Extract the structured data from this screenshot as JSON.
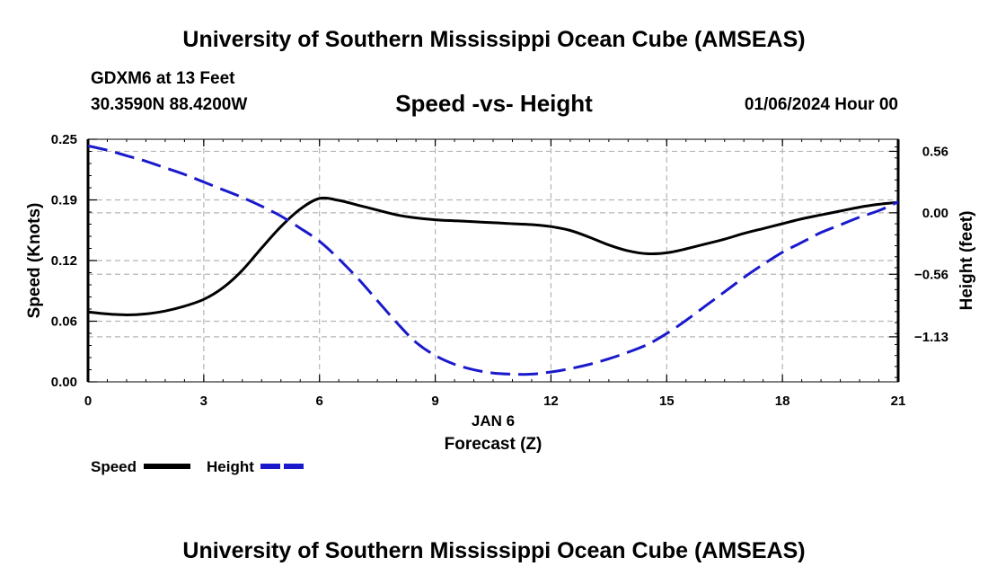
{
  "header": {
    "title": "University of Southern Mississippi Ocean Cube (AMSEAS)",
    "station": "GDXM6 at 13 Feet",
    "coords": "30.3590N  88.4200W",
    "subtitle": "Speed -vs- Height",
    "datetime": "01/06/2024 Hour 00"
  },
  "footer": {
    "title": "University of Southern Mississippi Ocean Cube (AMSEAS)"
  },
  "chart_data": {
    "type": "line",
    "x_label_line1": "JAN 6",
    "x_label_line2": "Forecast (Z)",
    "y_left_label": "Speed (Knots)",
    "y_right_label": "Height (feet)",
    "x_range": [
      0,
      21
    ],
    "x_ticks": [
      0,
      3,
      6,
      9,
      12,
      15,
      18,
      21
    ],
    "x_tick_labels": [
      "0",
      "3",
      "6",
      "9",
      "12",
      "15",
      "18",
      "21"
    ],
    "y_left_range": [
      0,
      0.25
    ],
    "y_left_ticks": [
      0,
      0.0625,
      0.125,
      0.1875,
      0.25
    ],
    "y_left_tick_labels": [
      "0.00",
      "0.06",
      "0.12",
      "0.19",
      "0.25"
    ],
    "y_right_range": [
      -1.54,
      0.67
    ],
    "y_right_ticks": [
      0.56,
      0,
      -0.56,
      -1.13
    ],
    "y_right_tick_labels": [
      "0.56",
      "0.00",
      "−0.56",
      "−1.13"
    ],
    "grid": true,
    "series": [
      {
        "name": "Speed",
        "axis": "left",
        "color": "#000000",
        "dash": "solid",
        "x": [
          0,
          0.5,
          1,
          1.5,
          2,
          2.5,
          3,
          3.5,
          4,
          4.5,
          5,
          5.5,
          6,
          6.5,
          7,
          7.5,
          8,
          8.5,
          9,
          9.5,
          10,
          10.5,
          11,
          11.5,
          12,
          12.5,
          13,
          13.5,
          14,
          14.5,
          15,
          15.5,
          16,
          16.5,
          17,
          17.5,
          18,
          18.5,
          19,
          19.5,
          20,
          20.5,
          21
        ],
        "values": [
          0.072,
          0.07,
          0.069,
          0.07,
          0.073,
          0.078,
          0.085,
          0.097,
          0.115,
          0.138,
          0.16,
          0.178,
          0.189,
          0.187,
          0.182,
          0.177,
          0.172,
          0.169,
          0.167,
          0.166,
          0.165,
          0.164,
          0.163,
          0.162,
          0.16,
          0.156,
          0.149,
          0.141,
          0.135,
          0.132,
          0.133,
          0.137,
          0.142,
          0.147,
          0.153,
          0.158,
          0.163,
          0.168,
          0.172,
          0.176,
          0.18,
          0.183,
          0.185
        ]
      },
      {
        "name": "Height",
        "axis": "right",
        "color": "#1a1acc",
        "dash": "dashed",
        "x": [
          0,
          0.5,
          1,
          1.5,
          2,
          2.5,
          3,
          3.5,
          4,
          4.5,
          5,
          5.5,
          6,
          6.5,
          7,
          7.5,
          8,
          8.5,
          9,
          9.5,
          10,
          10.5,
          11,
          11.5,
          12,
          12.5,
          13,
          13.5,
          14,
          14.5,
          15,
          15.5,
          16,
          16.5,
          17,
          17.5,
          18,
          18.5,
          19,
          19.5,
          20,
          20.5,
          21
        ],
        "values": [
          0.61,
          0.57,
          0.52,
          0.47,
          0.41,
          0.35,
          0.28,
          0.21,
          0.14,
          0.06,
          -0.03,
          -0.14,
          -0.26,
          -0.42,
          -0.6,
          -0.8,
          -1.0,
          -1.18,
          -1.3,
          -1.38,
          -1.43,
          -1.46,
          -1.47,
          -1.47,
          -1.45,
          -1.42,
          -1.38,
          -1.33,
          -1.27,
          -1.2,
          -1.1,
          -0.98,
          -0.85,
          -0.72,
          -0.59,
          -0.47,
          -0.36,
          -0.27,
          -0.18,
          -0.11,
          -0.04,
          0.02,
          0.1
        ]
      }
    ]
  },
  "legend": {
    "speed_label": "Speed",
    "height_label": "Height"
  }
}
